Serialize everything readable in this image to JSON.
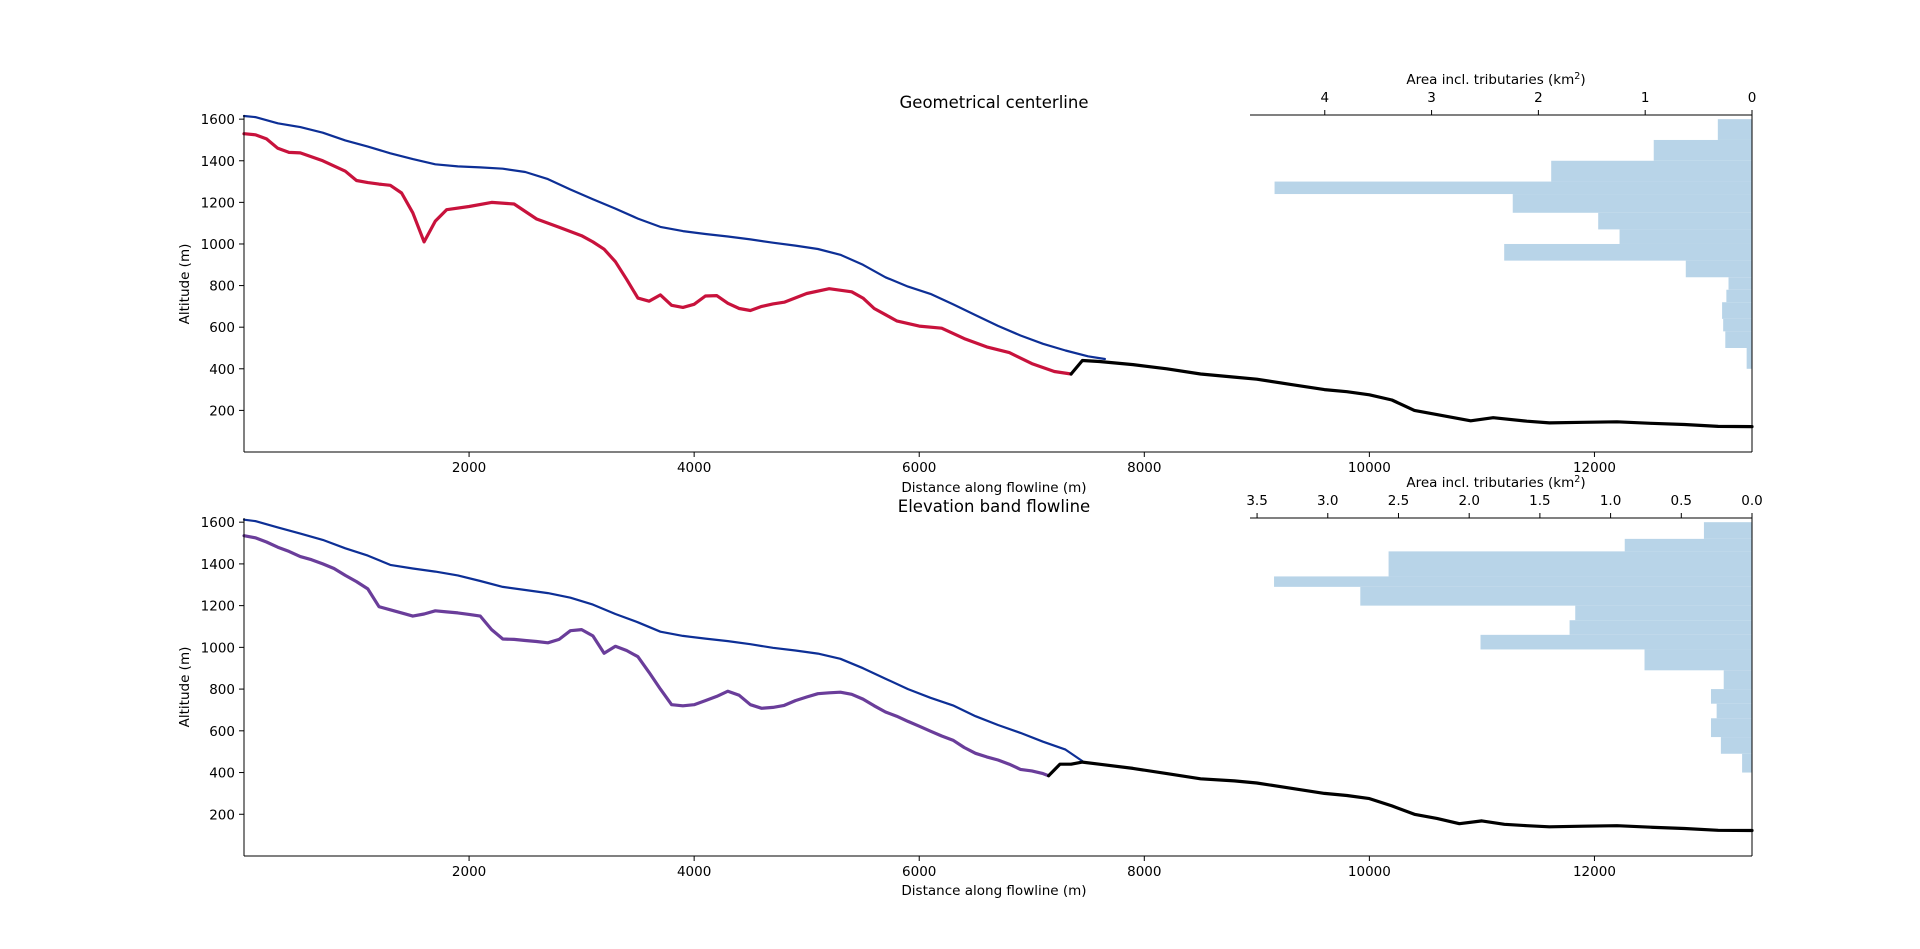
{
  "chart_data": [
    {
      "type": "line",
      "title": "Geometrical centerline",
      "xlabel": "Distance along flowline (m)",
      "ylabel": "Altitude (m)",
      "xlim": [
        0,
        13400
      ],
      "ylim": [
        0,
        1620
      ],
      "xticks": [
        "2000",
        "4000",
        "6000",
        "8000",
        "10000",
        "12000"
      ],
      "yticks": [
        "200",
        "400",
        "600",
        "800",
        "1000",
        "1200",
        "1400",
        "1600"
      ],
      "colors": {
        "surface": "#0d2f96",
        "bed": "#c8123c",
        "downstream": "#000000",
        "hist": "#b8d4e8"
      },
      "series": [
        {
          "key": "surface",
          "x": [
            0,
            100,
            300,
            500,
            700,
            900,
            1100,
            1300,
            1500,
            1700,
            1900,
            2100,
            2300,
            2500,
            2700,
            2900,
            3100,
            3300,
            3500,
            3700,
            3900,
            4100,
            4300,
            4500,
            4700,
            4900,
            5100,
            5300,
            5500,
            5700,
            5900,
            6100,
            6300,
            6500,
            6700,
            6900,
            7100,
            7300,
            7500,
            7650
          ],
          "y": [
            1615,
            1610,
            1580,
            1562,
            1535,
            1498,
            1468,
            1436,
            1408,
            1383,
            1373,
            1368,
            1362,
            1346,
            1312,
            1262,
            1215,
            1170,
            1122,
            1082,
            1062,
            1048,
            1036,
            1022,
            1006,
            992,
            976,
            948,
            900,
            840,
            795,
            760,
            710,
            658,
            606,
            560,
            520,
            488,
            460,
            447
          ]
        },
        {
          "key": "bed",
          "x": [
            0,
            100,
            200,
            300,
            400,
            500,
            700,
            900,
            1000,
            1100,
            1200,
            1300,
            1400,
            1500,
            1600,
            1700,
            1800,
            2000,
            2200,
            2400,
            2600,
            2800,
            3000,
            3100,
            3200,
            3300,
            3400,
            3500,
            3600,
            3700,
            3800,
            3900,
            4000,
            4100,
            4200,
            4300,
            4400,
            4500,
            4600,
            4700,
            4800,
            5000,
            5200,
            5400,
            5500,
            5600,
            5700,
            5800,
            6000,
            6200,
            6400,
            6600,
            6800,
            7000,
            7200,
            7350
          ],
          "y": [
            1530,
            1525,
            1505,
            1460,
            1440,
            1438,
            1400,
            1350,
            1305,
            1295,
            1288,
            1282,
            1245,
            1150,
            1010,
            1110,
            1165,
            1180,
            1200,
            1192,
            1120,
            1080,
            1040,
            1010,
            975,
            915,
            830,
            740,
            725,
            755,
            705,
            695,
            710,
            750,
            752,
            715,
            690,
            680,
            700,
            712,
            720,
            762,
            785,
            770,
            740,
            690,
            660,
            630,
            605,
            595,
            545,
            505,
            478,
            425,
            387,
            375
          ]
        },
        {
          "key": "downstream",
          "x": [
            7350,
            7450,
            7600,
            7900,
            8200,
            8500,
            8800,
            9000,
            9300,
            9600,
            9800,
            10000,
            10200,
            10400,
            10600,
            10900,
            11100,
            11400,
            11600,
            11900,
            12200,
            12500,
            12800,
            13100,
            13400
          ],
          "y": [
            375,
            440,
            435,
            420,
            400,
            375,
            360,
            350,
            325,
            300,
            290,
            275,
            250,
            200,
            180,
            150,
            165,
            148,
            140,
            143,
            145,
            138,
            132,
            123,
            122
          ]
        }
      ],
      "hist": {
        "xlabel": "Area incl. tributaries (km²)",
        "xlabel_main": "Area incl. tributaries (km",
        "xlabel_sup": "2",
        "xlabel_end": ")",
        "xmax": 4.7,
        "xticks": [
          {
            "value": 0,
            "label": "0"
          },
          {
            "value": 1,
            "label": "1"
          },
          {
            "value": 2,
            "label": "2"
          },
          {
            "value": 3,
            "label": "3"
          },
          {
            "value": 4,
            "label": "4"
          }
        ],
        "bins": [
          {
            "bottom": 1500,
            "top": 1600,
            "area": 0.32
          },
          {
            "bottom": 1400,
            "top": 1500,
            "area": 0.92
          },
          {
            "bottom": 1300,
            "top": 1400,
            "area": 1.88
          },
          {
            "bottom": 1240,
            "top": 1300,
            "area": 4.47
          },
          {
            "bottom": 1150,
            "top": 1240,
            "area": 2.24
          },
          {
            "bottom": 1070,
            "top": 1150,
            "area": 1.44
          },
          {
            "bottom": 1000,
            "top": 1070,
            "area": 1.24
          },
          {
            "bottom": 920,
            "top": 1000,
            "area": 2.32
          },
          {
            "bottom": 840,
            "top": 920,
            "area": 0.62
          },
          {
            "bottom": 780,
            "top": 840,
            "area": 0.22
          },
          {
            "bottom": 720,
            "top": 780,
            "area": 0.24
          },
          {
            "bottom": 640,
            "top": 720,
            "area": 0.28
          },
          {
            "bottom": 580,
            "top": 640,
            "area": 0.27
          },
          {
            "bottom": 500,
            "top": 580,
            "area": 0.25
          },
          {
            "bottom": 400,
            "top": 500,
            "area": 0.05
          }
        ]
      }
    },
    {
      "type": "line",
      "title": "Elevation band flowline",
      "xlabel": "Distance along flowline (m)",
      "ylabel": "Altitude (m)",
      "xlim": [
        0,
        13400
      ],
      "ylim": [
        0,
        1620
      ],
      "xticks": [
        "2000",
        "4000",
        "6000",
        "8000",
        "10000",
        "12000"
      ],
      "yticks": [
        "200",
        "400",
        "600",
        "800",
        "1000",
        "1200",
        "1400",
        "1600"
      ],
      "colors": {
        "surface": "#0d2f96",
        "bed": "#6a3d9a",
        "downstream": "#000000",
        "hist": "#b8d4e8"
      },
      "series": [
        {
          "key": "surface",
          "x": [
            0,
            100,
            300,
            500,
            700,
            900,
            1100,
            1300,
            1500,
            1700,
            1900,
            2100,
            2300,
            2500,
            2700,
            2900,
            3100,
            3300,
            3500,
            3700,
            3900,
            4100,
            4300,
            4500,
            4700,
            4900,
            5100,
            5300,
            5500,
            5700,
            5900,
            6100,
            6300,
            6500,
            6700,
            6900,
            7100,
            7300,
            7450
          ],
          "y": [
            1612,
            1605,
            1575,
            1545,
            1515,
            1475,
            1440,
            1395,
            1378,
            1363,
            1345,
            1318,
            1290,
            1275,
            1260,
            1238,
            1205,
            1160,
            1120,
            1075,
            1055,
            1042,
            1030,
            1015,
            998,
            985,
            970,
            945,
            900,
            850,
            800,
            758,
            722,
            670,
            628,
            590,
            548,
            510,
            455
          ]
        },
        {
          "key": "bed",
          "x": [
            0,
            100,
            200,
            300,
            400,
            500,
            600,
            700,
            800,
            900,
            1000,
            1100,
            1200,
            1300,
            1400,
            1500,
            1600,
            1700,
            1800,
            1900,
            2000,
            2100,
            2200,
            2300,
            2400,
            2500,
            2600,
            2700,
            2800,
            2900,
            3000,
            3100,
            3200,
            3300,
            3400,
            3500,
            3600,
            3700,
            3800,
            3900,
            4000,
            4100,
            4200,
            4300,
            4400,
            4500,
            4600,
            4700,
            4800,
            4900,
            5000,
            5100,
            5200,
            5300,
            5400,
            5500,
            5600,
            5700,
            5800,
            5900,
            6000,
            6100,
            6200,
            6300,
            6400,
            6500,
            6600,
            6700,
            6800,
            6900,
            7000,
            7100,
            7150
          ],
          "y": [
            1535,
            1525,
            1505,
            1480,
            1460,
            1435,
            1420,
            1400,
            1378,
            1345,
            1315,
            1280,
            1195,
            1180,
            1165,
            1150,
            1160,
            1175,
            1170,
            1165,
            1158,
            1150,
            1085,
            1040,
            1038,
            1033,
            1028,
            1022,
            1038,
            1080,
            1085,
            1055,
            972,
            1005,
            985,
            955,
            880,
            800,
            725,
            720,
            725,
            745,
            765,
            790,
            770,
            725,
            708,
            712,
            722,
            745,
            762,
            778,
            782,
            785,
            775,
            752,
            720,
            690,
            670,
            645,
            622,
            598,
            575,
            555,
            520,
            492,
            475,
            460,
            440,
            415,
            408,
            395,
            385
          ]
        },
        {
          "key": "downstream",
          "x": [
            7150,
            7250,
            7350,
            7450,
            7600,
            7900,
            8200,
            8500,
            8800,
            9000,
            9300,
            9600,
            9800,
            10000,
            10200,
            10400,
            10600,
            10800,
            11000,
            11200,
            11400,
            11600,
            11900,
            12200,
            12500,
            12800,
            13100,
            13400
          ],
          "y": [
            385,
            440,
            440,
            450,
            440,
            420,
            395,
            370,
            360,
            350,
            325,
            300,
            290,
            275,
            240,
            200,
            180,
            155,
            168,
            152,
            145,
            140,
            143,
            145,
            138,
            132,
            123,
            122
          ]
        }
      ],
      "hist": {
        "xlabel": "Area incl. tributaries (km²)",
        "xlabel_main": "Area incl. tributaries (km",
        "xlabel_sup": "2",
        "xlabel_end": ")",
        "xmax": 3.55,
        "xticks": [
          {
            "value": 0,
            "label": "0.0"
          },
          {
            "value": 0.5,
            "label": "0.5"
          },
          {
            "value": 1,
            "label": "1.0"
          },
          {
            "value": 1.5,
            "label": "1.5"
          },
          {
            "value": 2,
            "label": "2.0"
          },
          {
            "value": 2.5,
            "label": "2.5"
          },
          {
            "value": 3,
            "label": "3.0"
          },
          {
            "value": 3.5,
            "label": "3.5"
          }
        ],
        "bins": [
          {
            "bottom": 1520,
            "top": 1600,
            "area": 0.34
          },
          {
            "bottom": 1460,
            "top": 1520,
            "area": 0.9
          },
          {
            "bottom": 1340,
            "top": 1460,
            "area": 2.57
          },
          {
            "bottom": 1290,
            "top": 1340,
            "area": 3.38
          },
          {
            "bottom": 1200,
            "top": 1290,
            "area": 2.77
          },
          {
            "bottom": 1130,
            "top": 1200,
            "area": 1.25
          },
          {
            "bottom": 1060,
            "top": 1130,
            "area": 1.29
          },
          {
            "bottom": 990,
            "top": 1060,
            "area": 1.92
          },
          {
            "bottom": 890,
            "top": 990,
            "area": 0.76
          },
          {
            "bottom": 800,
            "top": 890,
            "area": 0.2
          },
          {
            "bottom": 730,
            "top": 800,
            "area": 0.29
          },
          {
            "bottom": 660,
            "top": 730,
            "area": 0.25
          },
          {
            "bottom": 570,
            "top": 660,
            "area": 0.29
          },
          {
            "bottom": 490,
            "top": 570,
            "area": 0.22
          },
          {
            "bottom": 400,
            "top": 490,
            "area": 0.07
          }
        ]
      }
    }
  ]
}
